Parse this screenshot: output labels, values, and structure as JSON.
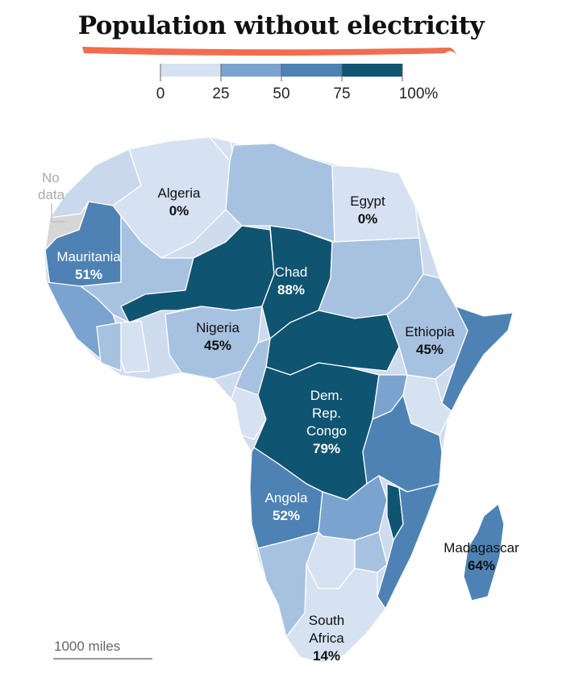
{
  "title": "Population without electricity",
  "legend": {
    "ticks": [
      "0",
      "25",
      "50",
      "75",
      "100%"
    ],
    "colors": [
      "#d6e2f1",
      "#a7c2e0",
      "#7ba3cf",
      "#4e82b4",
      "#0f5470"
    ]
  },
  "no_data": {
    "line1": "No",
    "line2": "data",
    "color": "#d6d6d6"
  },
  "countries": [
    {
      "name": "Algeria",
      "value": "0%",
      "percent": 0
    },
    {
      "name": "Egypt",
      "value": "0%",
      "percent": 0
    },
    {
      "name": "Mauritania",
      "value": "51%",
      "percent": 51
    },
    {
      "name": "Chad",
      "value": "88%",
      "percent": 88
    },
    {
      "name": "Nigeria",
      "value": "45%",
      "percent": 45
    },
    {
      "name": "Ethiopia",
      "value": "45%",
      "percent": 45
    },
    {
      "name": "Dem.\nRep.\nCongo",
      "value": "79%",
      "percent": 79
    },
    {
      "name": "Angola",
      "value": "52%",
      "percent": 52
    },
    {
      "name": "Madagascar",
      "value": "64%",
      "percent": 64
    },
    {
      "name": "South\nAfrica",
      "value": "14%",
      "percent": 14
    }
  ],
  "scale": {
    "label": "1000 miles"
  }
}
